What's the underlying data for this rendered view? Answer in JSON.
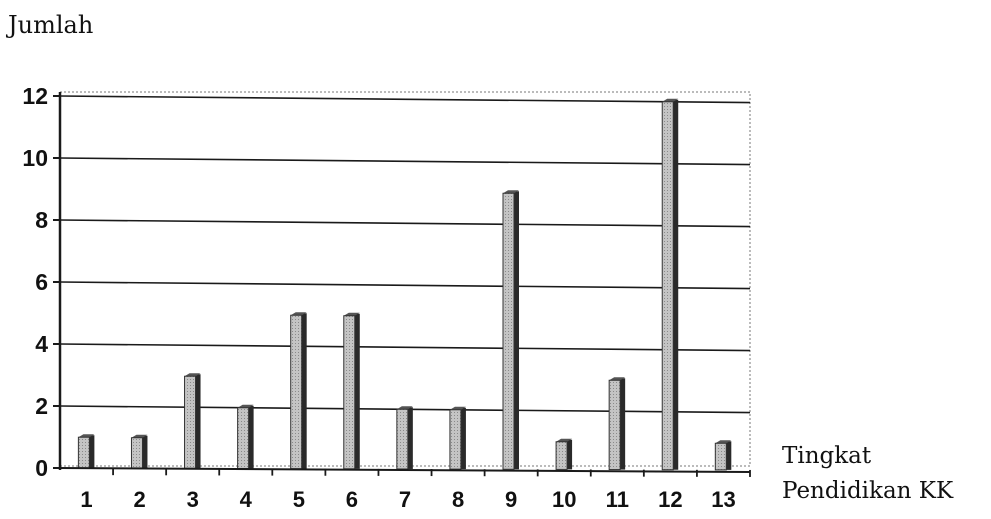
{
  "chart_data": {
    "type": "bar",
    "ylabel": "Jumlah",
    "xlabel_line1": "Tingkat",
    "xlabel_line2": "Pendidikan KK",
    "categories": [
      "1",
      "2",
      "3",
      "4",
      "5",
      "6",
      "7",
      "8",
      "9",
      "10",
      "11",
      "12",
      "13"
    ],
    "values": [
      1,
      1,
      3,
      2,
      5,
      5,
      2,
      2,
      9,
      1,
      3,
      12,
      1
    ],
    "ylim": [
      0,
      12
    ],
    "yticks": [
      "0",
      "2",
      "4",
      "6",
      "8",
      "10",
      "12"
    ],
    "grid": true,
    "bar_face_color": "#b4b4b4",
    "bar_shadow_color": "#2a2a2a",
    "axis_color": "#1a1a1a",
    "grid_color": "#1a1a1a"
  }
}
